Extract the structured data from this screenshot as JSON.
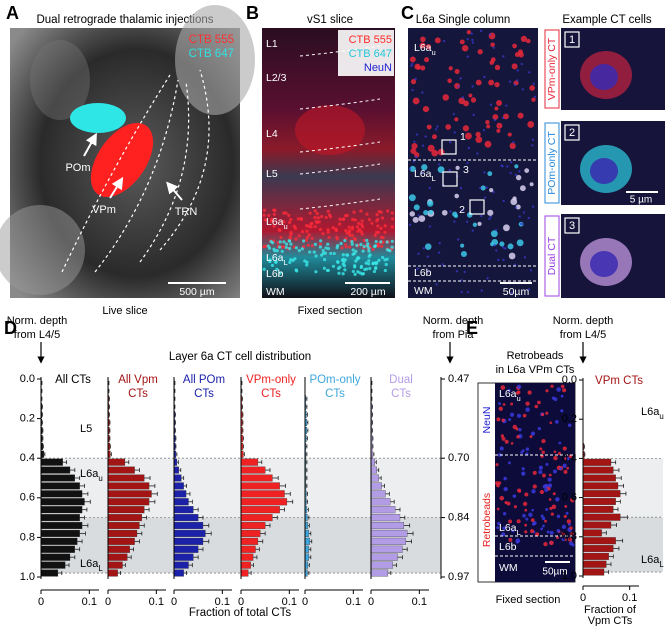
{
  "panel_a": {
    "letter": "A",
    "title": "Dual retrograde thalamic injections",
    "legend": [
      "CTB 555",
      "CTB 647"
    ],
    "labels": [
      "POm",
      "VPm",
      "TRN"
    ],
    "scale_bar": "500 µm",
    "caption": "Live slice"
  },
  "panel_b": {
    "letter": "B",
    "title": "vS1 slice",
    "legend": [
      "CTB 555",
      "CTB 647",
      "NeuN"
    ],
    "layers": [
      {
        "text": "L1"
      },
      {
        "text": "L2/3"
      },
      {
        "text": "L4"
      },
      {
        "text": "L5"
      },
      {
        "text": "L6a",
        "sub": "u"
      },
      {
        "text": "L6a",
        "sub": "L"
      },
      {
        "text": "L6b"
      },
      {
        "text": "WM"
      }
    ],
    "scale_bar": "200 µm",
    "caption": "Fixed section"
  },
  "panel_c": {
    "letter": "C",
    "title": "L6a Single column",
    "inset_title": "Example CT cells",
    "layers": [
      {
        "text": "L6a",
        "sub": "u"
      },
      {
        "text": "L6a",
        "sub": "L"
      },
      {
        "text": "L6b"
      },
      {
        "text": "WM"
      }
    ],
    "scale_bar": "50µm",
    "cells": [
      "1",
      "2",
      "3"
    ],
    "insets": [
      {
        "number": "1",
        "label": "VPm-only CT"
      },
      {
        "number": "2",
        "label": "POm-only CT",
        "scale_bar": "5 µm"
      },
      {
        "number": "3",
        "label": "Dual CT"
      }
    ]
  },
  "panel_d": {
    "letter": "D",
    "title": "Layer 6a CT cell distribution",
    "left_axis_title": [
      "Norm. depth",
      "from L4/5"
    ],
    "right_axis_title": [
      "Norm. depth",
      "from Pia"
    ],
    "x_axis_title": "Fraction of total CTs",
    "pia_ticks": [
      {
        "depth": 0,
        "label": "0.47"
      },
      {
        "depth": 0.4,
        "label": "0.70"
      },
      {
        "depth": 0.7,
        "label": "0.84"
      },
      {
        "depth": 1,
        "label": "0.97"
      }
    ],
    "layer_labels": [
      {
        "text": "L5"
      },
      {
        "text": "L6a",
        "sub": "u"
      },
      {
        "text": "L6a",
        "sub": "L"
      }
    ]
  },
  "panel_e": {
    "letter": "E",
    "title": [
      "Retrobeads",
      "in L6a VPm CTs"
    ],
    "stain_labels": [
      "NeuN",
      "Retrobeads"
    ],
    "layers": [
      {
        "text": "L6a",
        "sub": "u"
      },
      {
        "text": "L6a",
        "sub": "L"
      },
      {
        "text": "L6b"
      },
      {
        "text": "WM"
      }
    ],
    "scale_bar": "50µm",
    "caption": "Fixed section",
    "axis_title": [
      "Norm. depth",
      "from L4/5"
    ],
    "x_axis_title": [
      "Fraction of",
      "Vpm CTs"
    ],
    "layer_labels": [
      {
        "text": "L6a",
        "sub": "u"
      },
      {
        "text": "L6a",
        "sub": "L"
      }
    ]
  },
  "chart_data": [
    {
      "type": "histogram",
      "title": [
        "All CTs"
      ],
      "color": "#111111",
      "bins": [
        0,
        0.04,
        0.08,
        0.12,
        0.16,
        0.2,
        0.24,
        0.28,
        0.32,
        0.36,
        0.4,
        0.44,
        0.48,
        0.52,
        0.56,
        0.6,
        0.64,
        0.68,
        0.72,
        0.76,
        0.8,
        0.84,
        0.88,
        0.92,
        0.96,
        1
      ],
      "values": [
        0.001,
        0.001,
        0.001,
        0.002,
        0.002,
        0.002,
        0.003,
        0.003,
        0.004,
        0.006,
        0.045,
        0.06,
        0.07,
        0.08,
        0.085,
        0.09,
        0.085,
        0.08,
        0.085,
        0.08,
        0.075,
        0.07,
        0.06,
        0.05,
        0.035
      ],
      "errors": [
        0.001,
        0.001,
        0.001,
        0.001,
        0.001,
        0.001,
        0.001,
        0.001,
        0.001,
        0.002,
        0.008,
        0.01,
        0.01,
        0.01,
        0.012,
        0.012,
        0.01,
        0.01,
        0.012,
        0.012,
        0.01,
        0.01,
        0.01,
        0.008,
        0.008
      ],
      "xlim": [
        0,
        0.12
      ],
      "xticks": [
        0,
        0.1
      ],
      "ylim": [
        0,
        1
      ],
      "yticks": [
        {
          "value": 0,
          "label": "0.0"
        },
        0.2,
        0.4,
        0.6,
        0.8,
        {
          "value": 1,
          "label": "1.0"
        }
      ],
      "boundaries": [
        0.4,
        0.7,
        0.98
      ]
    },
    {
      "type": "histogram",
      "title": [
        "All Vpm",
        "CTs"
      ],
      "color": "#a31414",
      "bins": [
        0,
        0.04,
        0.08,
        0.12,
        0.16,
        0.2,
        0.24,
        0.28,
        0.32,
        0.36,
        0.4,
        0.44,
        0.48,
        0.52,
        0.56,
        0.6,
        0.64,
        0.68,
        0.72,
        0.76,
        0.8,
        0.84,
        0.88,
        0.92,
        0.96,
        1
      ],
      "values": [
        0.001,
        0.001,
        0.002,
        0.002,
        0.002,
        0.003,
        0.003,
        0.003,
        0.004,
        0.005,
        0.035,
        0.055,
        0.075,
        0.085,
        0.09,
        0.085,
        0.075,
        0.07,
        0.065,
        0.06,
        0.055,
        0.045,
        0.04,
        0.03,
        0.02
      ],
      "errors": [
        0.001,
        0.001,
        0.001,
        0.001,
        0.001,
        0.001,
        0.001,
        0.001,
        0.001,
        0.002,
        0.008,
        0.01,
        0.012,
        0.012,
        0.012,
        0.012,
        0.01,
        0.01,
        0.01,
        0.01,
        0.01,
        0.008,
        0.008,
        0.006,
        0.006
      ],
      "xlim": [
        0,
        0.12
      ],
      "xticks": [
        0,
        0.1
      ],
      "ylim": [
        0,
        1
      ],
      "boundaries": [
        0.4,
        0.7,
        0.98
      ]
    },
    {
      "type": "histogram",
      "title": [
        "All POm",
        "CTs"
      ],
      "color": "#1c22a8",
      "bins": [
        0,
        0.04,
        0.08,
        0.12,
        0.16,
        0.2,
        0.24,
        0.28,
        0.32,
        0.36,
        0.4,
        0.44,
        0.48,
        0.52,
        0.56,
        0.6,
        0.64,
        0.68,
        0.72,
        0.76,
        0.8,
        0.84,
        0.88,
        0.92,
        0.96,
        1
      ],
      "values": [
        0.001,
        0.001,
        0.001,
        0.001,
        0.002,
        0.002,
        0.002,
        0.003,
        0.003,
        0.004,
        0.006,
        0.01,
        0.015,
        0.02,
        0.025,
        0.03,
        0.04,
        0.05,
        0.06,
        0.065,
        0.06,
        0.05,
        0.04,
        0.03,
        0.02
      ],
      "errors": [
        0.001,
        0.001,
        0.001,
        0.001,
        0.001,
        0.001,
        0.001,
        0.001,
        0.001,
        0.002,
        0.003,
        0.004,
        0.005,
        0.006,
        0.008,
        0.008,
        0.01,
        0.01,
        0.012,
        0.012,
        0.012,
        0.01,
        0.01,
        0.008,
        0.006
      ],
      "xlim": [
        0,
        0.12
      ],
      "xticks": [
        0,
        0.1
      ],
      "ylim": [
        0,
        1
      ],
      "boundaries": [
        0.4,
        0.7,
        0.98
      ]
    },
    {
      "type": "histogram",
      "title": [
        "VPm-only",
        "CTs"
      ],
      "color": "#ee2222",
      "bins": [
        0,
        0.04,
        0.08,
        0.12,
        0.16,
        0.2,
        0.24,
        0.28,
        0.32,
        0.36,
        0.4,
        0.44,
        0.48,
        0.52,
        0.56,
        0.6,
        0.64,
        0.68,
        0.72,
        0.76,
        0.8,
        0.84,
        0.88,
        0.92,
        0.96,
        1
      ],
      "values": [
        0.001,
        0.001,
        0.002,
        0.002,
        0.003,
        0.003,
        0.003,
        0.004,
        0.004,
        0.005,
        0.035,
        0.05,
        0.065,
        0.08,
        0.09,
        0.095,
        0.08,
        0.065,
        0.05,
        0.04,
        0.035,
        0.03,
        0.025,
        0.02,
        0.015
      ],
      "errors": [
        0.001,
        0.001,
        0.001,
        0.001,
        0.001,
        0.001,
        0.001,
        0.001,
        0.001,
        0.002,
        0.008,
        0.01,
        0.012,
        0.012,
        0.012,
        0.012,
        0.01,
        0.01,
        0.01,
        0.01,
        0.01,
        0.008,
        0.008,
        0.006,
        0.006
      ],
      "xlim": [
        0,
        0.12
      ],
      "xticks": [
        0,
        0.1
      ],
      "ylim": [
        0,
        1
      ],
      "boundaries": [
        0.4,
        0.7,
        0.98
      ]
    },
    {
      "type": "histogram",
      "title": [
        "POm-only",
        "CTs"
      ],
      "color": "#3ea6dc",
      "bins": [
        0,
        0.04,
        0.08,
        0.12,
        0.16,
        0.2,
        0.24,
        0.28,
        0.32,
        0.36,
        0.4,
        0.44,
        0.48,
        0.52,
        0.56,
        0.6,
        0.64,
        0.68,
        0.72,
        0.76,
        0.8,
        0.84,
        0.88,
        0.92,
        0.96,
        1
      ],
      "values": [
        0,
        0,
        0.002,
        0.002,
        0.003,
        0.004,
        0.004,
        0.003,
        0.002,
        0.002,
        0.002,
        0.002,
        0.002,
        0.002,
        0.003,
        0.003,
        0.004,
        0.005,
        0.006,
        0.008,
        0.01,
        0.008,
        0.008,
        0.006,
        0.005
      ],
      "errors": [
        0,
        0,
        0.002,
        0.002,
        0.002,
        0.002,
        0.002,
        0.002,
        0.002,
        0.002,
        0.002,
        0.002,
        0.002,
        0.002,
        0.002,
        0.002,
        0.003,
        0.003,
        0.003,
        0.004,
        0.004,
        0.004,
        0.004,
        0.003,
        0.003
      ],
      "xlim": [
        0,
        0.12
      ],
      "xticks": [
        0,
        0.1
      ],
      "ylim": [
        0,
        1
      ],
      "boundaries": [
        0.4,
        0.7,
        0.98
      ]
    },
    {
      "type": "histogram",
      "title": [
        "Dual",
        "CTs"
      ],
      "color": "#b39ce6",
      "bins": [
        0,
        0.04,
        0.08,
        0.12,
        0.16,
        0.2,
        0.24,
        0.28,
        0.32,
        0.36,
        0.4,
        0.44,
        0.48,
        0.52,
        0.56,
        0.6,
        0.64,
        0.68,
        0.72,
        0.76,
        0.8,
        0.84,
        0.88,
        0.92,
        0.96,
        1
      ],
      "values": [
        0.001,
        0.001,
        0.001,
        0.002,
        0.002,
        0.002,
        0.002,
        0.003,
        0.003,
        0.004,
        0.008,
        0.012,
        0.016,
        0.022,
        0.03,
        0.04,
        0.05,
        0.06,
        0.068,
        0.075,
        0.072,
        0.065,
        0.055,
        0.045,
        0.035
      ],
      "errors": [
        0.001,
        0.001,
        0.001,
        0.001,
        0.001,
        0.001,
        0.001,
        0.001,
        0.001,
        0.002,
        0.003,
        0.004,
        0.005,
        0.006,
        0.008,
        0.008,
        0.01,
        0.01,
        0.012,
        0.012,
        0.012,
        0.01,
        0.01,
        0.008,
        0.006
      ],
      "xlim": [
        0,
        0.12
      ],
      "xticks": [
        0,
        0.1
      ],
      "ylim": [
        0,
        1
      ],
      "boundaries": [
        0.4,
        0.7,
        0.98
      ]
    },
    {
      "type": "histogram",
      "title": [
        "VPm CTs"
      ],
      "color": "#a31414",
      "bins": [
        0,
        0.04,
        0.08,
        0.12,
        0.16,
        0.2,
        0.24,
        0.28,
        0.32,
        0.36,
        0.4,
        0.44,
        0.48,
        0.52,
        0.56,
        0.6,
        0.64,
        0.68,
        0.72,
        0.76,
        0.8,
        0.84,
        0.88,
        0.92,
        0.96,
        1
      ],
      "values": [
        0,
        0,
        0,
        0,
        0,
        0,
        0,
        0,
        0.002,
        0.003,
        0.06,
        0.065,
        0.07,
        0.075,
        0.08,
        0.07,
        0.065,
        0.08,
        0.06,
        0.04,
        0.07,
        0.065,
        0.055,
        0.05,
        0.045
      ],
      "errors": [
        0,
        0,
        0,
        0,
        0,
        0,
        0,
        0,
        0.001,
        0.001,
        0.01,
        0.012,
        0.012,
        0.012,
        0.012,
        0.01,
        0.01,
        0.015,
        0.012,
        0.01,
        0.015,
        0.012,
        0.01,
        0.01,
        0.01
      ],
      "xlim": [
        0,
        0.12
      ],
      "xticks": [
        0,
        0.1
      ],
      "ylim": [
        0,
        1
      ],
      "yticks": [
        {
          "value": 0,
          "label": "0.0"
        },
        0.2,
        0.4,
        0.6,
        0.8,
        {
          "value": 1,
          "label": "1.0"
        }
      ],
      "boundaries": [
        0.4,
        0.7,
        0.98
      ]
    }
  ]
}
